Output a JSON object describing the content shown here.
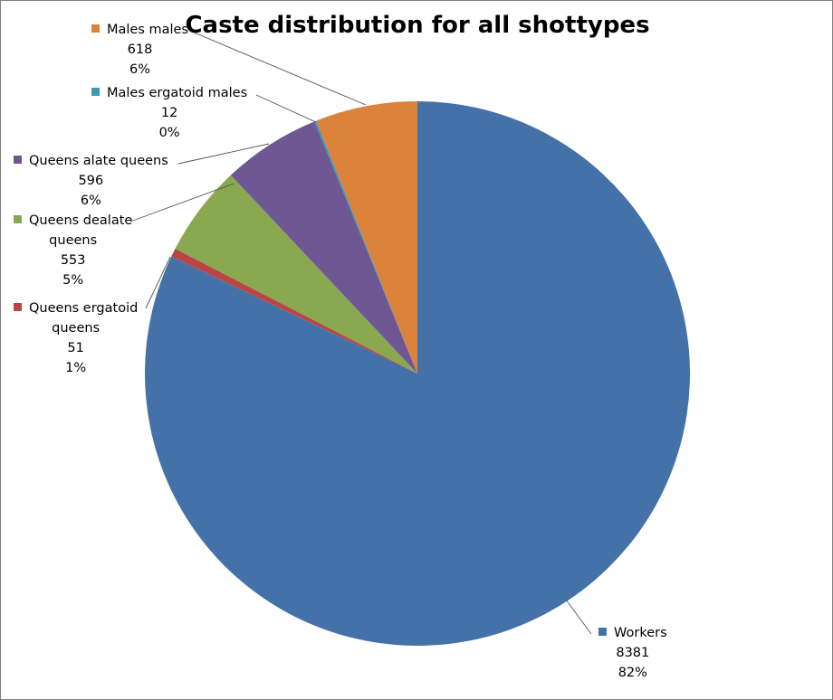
{
  "chart_data": {
    "type": "pie",
    "title": "Caste distribution for all shottypes",
    "slices": [
      {
        "category": "Workers",
        "value": 8381,
        "percent": "82%",
        "color": "#4472a8"
      },
      {
        "category": "Queens ergatoid queens",
        "value": 51,
        "percent": "1%",
        "color": "#b94645"
      },
      {
        "category": "Queens dealate queens",
        "value": 553,
        "percent": "5%",
        "color": "#8aa84f"
      },
      {
        "category": "Queens alate queens",
        "value": 596,
        "percent": "6%",
        "color": "#6f5794"
      },
      {
        "category": "Males ergatoid males",
        "value": 12,
        "percent": "0%",
        "color": "#3a9bb5"
      },
      {
        "category": "Males males",
        "value": 618,
        "percent": "6%",
        "color": "#dd823b"
      }
    ],
    "data_labels": [
      {
        "lines": [
          "Workers",
          "8381",
          "82%"
        ]
      },
      {
        "lines": [
          "Queens ergatoid",
          "queens",
          "51",
          "1%"
        ]
      },
      {
        "lines": [
          "Queens dealate",
          "queens",
          "553",
          "5%"
        ]
      },
      {
        "lines": [
          "Queens alate queens",
          "596",
          "6%"
        ]
      },
      {
        "lines": [
          "Males ergatoid males",
          "12",
          "0%"
        ]
      },
      {
        "lines": [
          "Males males",
          "618",
          "6%"
        ]
      }
    ]
  }
}
